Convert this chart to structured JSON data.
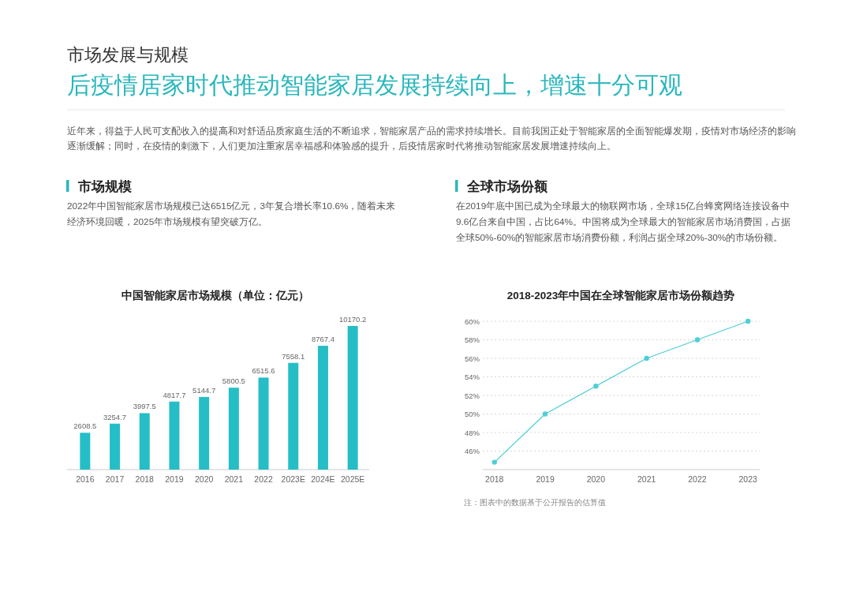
{
  "chart_data": [
    {
      "type": "other",
      "title": "市场发展与规模",
      "subtitle": "后疫情居家时代推动智能家居发展持续向上，增速十分可观",
      "annotations": [
        "近年来，得益于人民可支配收入的提高和对舒适品质家庭生活的不断追求，智能家居产品的需求持续增长。目前我国正处于智能家居的全面智能爆发期，疫情对市场经济的影响逐渐缓解；同时，在疫情的刺激下，人们更加注重家居幸福感和体验感的提升，后疫情居家时代将推动智能家居发展增速持续向上。"
      ]
    },
    {
      "type": "other",
      "title": "市场规模",
      "annotations": [
        "2022年中国智能家居市场规模已达6515亿元，3年复合增长率10.6%，随着未来经济环境回暖，2025年市场规模有望突破万亿。"
      ]
    },
    {
      "type": "other",
      "title": "全球市场份额",
      "annotations": [
        "在2019年底中国已成为全球最大的物联网市场，全球15亿台蜂窝网络连接设备中9.6亿台来自中国，占比64%。中国将成为全球最大的智能家居市场消费国，占据全球50%-60%的智能家居市场消费份额，利润占据全球20%-30%的市场份额。"
      ]
    },
    {
      "type": "bar",
      "title": "中国智能家居市场规模（单位：亿元）",
      "categories": [
        "2016",
        "2017",
        "2018",
        "2019",
        "2020",
        "2021",
        "2022",
        "2023E",
        "2024E",
        "2025E"
      ],
      "values": [
        2608.5,
        3254.7,
        3997.5,
        4817.7,
        5144.7,
        5800.5,
        6515.6,
        7558.1,
        8767.4,
        10170.2
      ],
      "color": "#26bec6",
      "data_labels": true,
      "tick_labels": "x"
    },
    {
      "type": "line",
      "title": "2018-2023年中国在全球智能家居市场份额趋势",
      "categories": [
        "2018",
        "2019",
        "2020",
        "2021",
        "2022",
        "2023"
      ],
      "series": [
        {
          "color": "#4dcfd5",
          "values": [
            44.8,
            50,
            53,
            56,
            58,
            60
          ]
        }
      ],
      "ylim": [
        44,
        60
      ],
      "yticks": [
        {
          "value": 46,
          "label": "46%"
        },
        {
          "value": 48,
          "label": "48%"
        },
        {
          "value": 50,
          "label": "50%"
        },
        {
          "value": 52,
          "label": "52%"
        },
        {
          "value": 54,
          "label": "54%"
        },
        {
          "value": 56,
          "label": "56%"
        },
        {
          "value": 58,
          "label": "58%"
        },
        {
          "value": 60,
          "label": "60%"
        }
      ],
      "grid": "y",
      "marker": "circle",
      "annotations": [
        "注：图表中的数据基于公开报告的估算值"
      ]
    }
  ]
}
